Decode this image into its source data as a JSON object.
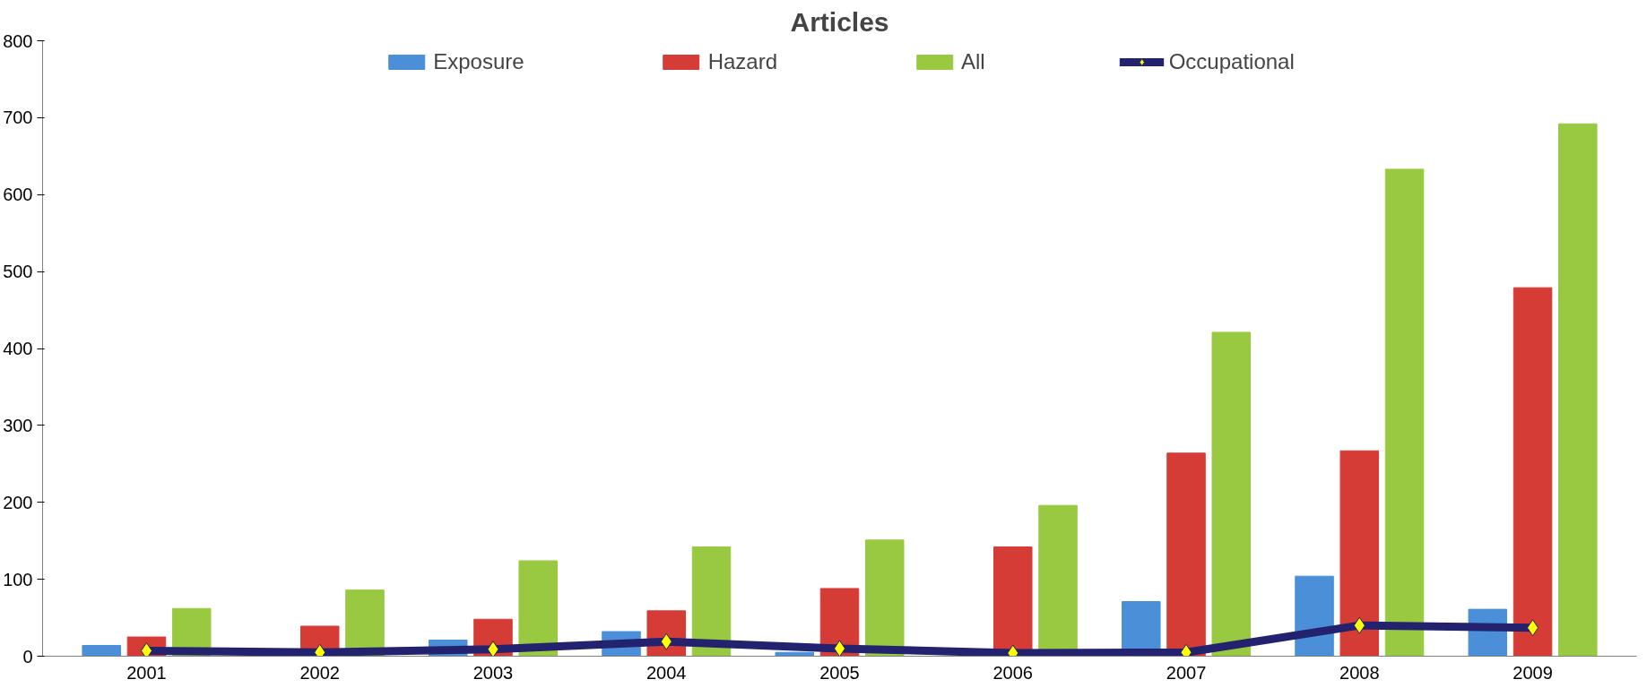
{
  "chart_data": {
    "type": "bar",
    "title": "Articles",
    "categories": [
      "2001",
      "2002",
      "2003",
      "2004",
      "2005",
      "2006",
      "2007",
      "2008",
      "2009"
    ],
    "series": [
      {
        "name": "Exposure",
        "color": "#4a8fd8",
        "values": [
          14,
          0,
          21,
          32,
          5,
          0,
          71,
          104,
          61
        ]
      },
      {
        "name": "Hazard",
        "color": "#d63c36",
        "values": [
          25,
          39,
          48,
          59,
          88,
          142,
          264,
          267,
          479
        ]
      },
      {
        "name": "All",
        "color": "#98c940",
        "values": [
          62,
          86,
          124,
          142,
          151,
          196,
          421,
          633,
          692
        ]
      },
      {
        "name": "Occupational",
        "type": "line",
        "color": "#22226e",
        "marker": "diamond",
        "values": [
          7,
          5,
          9,
          19,
          10,
          4,
          5,
          40,
          37
        ]
      }
    ],
    "ylim": [
      0,
      800
    ],
    "yticks": [
      0,
      100,
      200,
      300,
      400,
      500,
      600,
      700,
      800
    ],
    "grid": false,
    "legend": "top"
  }
}
